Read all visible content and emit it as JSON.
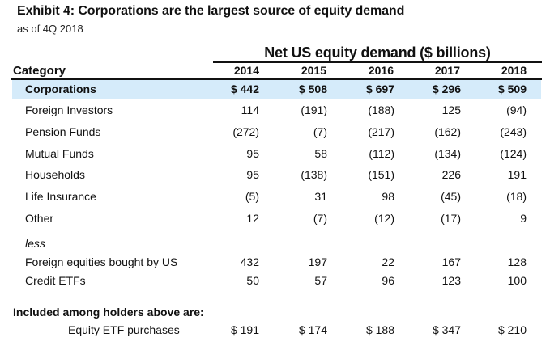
{
  "title": "Exhibit 4: Corporations are the largest source of equity demand",
  "subtitle": "as of 4Q 2018",
  "table": {
    "group_header": "Net US equity demand ($ billions)",
    "category_header": "Category",
    "years": [
      "2014",
      "2015",
      "2016",
      "2017",
      "2018"
    ],
    "highlight_color": "#d5ebfa",
    "rows": [
      {
        "label": "Corporations",
        "values": [
          "$ 442",
          "$ 508",
          "$ 697",
          "$ 296",
          "$ 509"
        ]
      },
      {
        "label": "Foreign Investors",
        "values": [
          "114",
          "(191)",
          "(188)",
          "125",
          "(94)"
        ]
      },
      {
        "label": "Pension Funds",
        "values": [
          "(272)",
          "(7)",
          "(217)",
          "(162)",
          "(243)"
        ]
      },
      {
        "label": "Mutual Funds",
        "values": [
          "95",
          "58",
          "(112)",
          "(134)",
          "(124)"
        ]
      },
      {
        "label": "Households",
        "values": [
          "95",
          "(138)",
          "(151)",
          "226",
          "191"
        ]
      },
      {
        "label": "Life Insurance",
        "values": [
          "(5)",
          "31",
          "98",
          "(45)",
          "(18)"
        ]
      },
      {
        "label": "Other",
        "values": [
          "12",
          "(7)",
          "(12)",
          "(17)",
          "9"
        ]
      }
    ],
    "less_label": "less",
    "less_rows": [
      {
        "label": "Foreign equities bought by US",
        "values": [
          "432",
          "197",
          "22",
          "167",
          "128"
        ]
      },
      {
        "label": "Credit ETFs",
        "values": [
          "50",
          "57",
          "96",
          "123",
          "100"
        ]
      }
    ],
    "included_label": "Included among holders above are:",
    "included_rows": [
      {
        "label": "Equity ETF purchases",
        "values": [
          "$ 191",
          "$ 174",
          "$ 188",
          "$ 347",
          "$ 210"
        ]
      }
    ]
  }
}
